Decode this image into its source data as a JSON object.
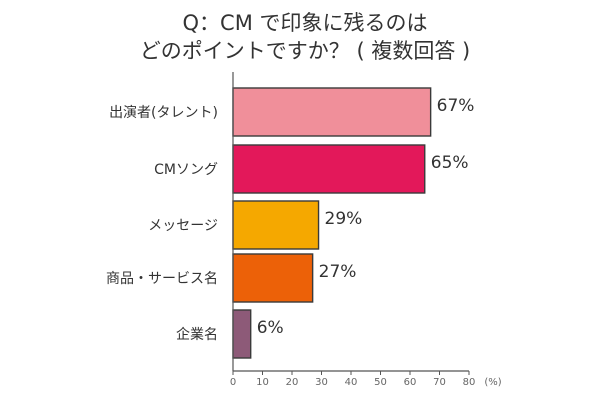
{
  "chart_data": {
    "type": "bar",
    "orientation": "horizontal",
    "title_lines": [
      "Q：CM で印象に残るのは",
      "どのポイントですか？ ( 複数回答 )"
    ],
    "categories": [
      "出演者(タレント)",
      "CMソング",
      "メッセージ",
      "商品・サービス名",
      "企業名"
    ],
    "values": [
      67,
      65,
      29,
      27,
      6
    ],
    "value_labels": [
      "67%",
      "65%",
      "29%",
      "27%",
      "6%"
    ],
    "colors": [
      "#f08f9a",
      "#e3185a",
      "#f5a800",
      "#ec6108",
      "#8d5a78"
    ],
    "x_ticks": [
      "0",
      "10",
      "20",
      "30",
      "40",
      "50",
      "60",
      "70",
      "80"
    ],
    "x_unit": "(%)",
    "xlim": [
      0,
      80
    ],
    "grid": false
  }
}
